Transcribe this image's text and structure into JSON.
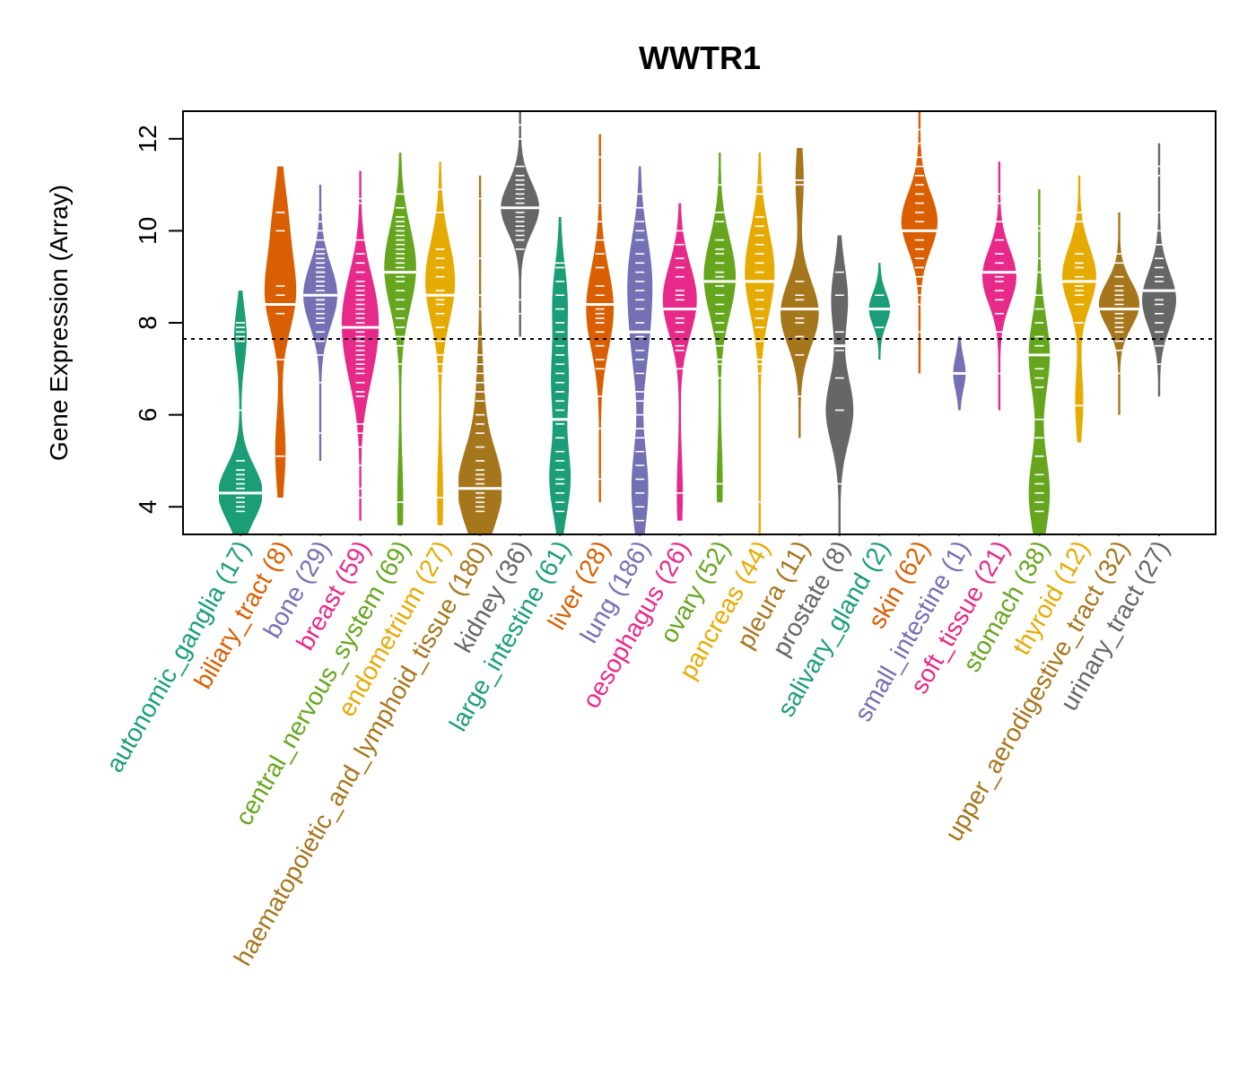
{
  "chart_data": {
    "type": "violin",
    "title": "WWTR1",
    "xlabel": "",
    "ylabel": "Gene Expression (Array)",
    "ylim": [
      3.4,
      12.6
    ],
    "yticks": [
      4,
      6,
      8,
      10,
      12
    ],
    "reference_line": {
      "value": 7.65,
      "style": "dotted",
      "color": "#000000"
    },
    "grid": false,
    "legend": "none",
    "palette": [
      "#1B9E77",
      "#D95F02",
      "#7570B3",
      "#E7298A",
      "#66A61E",
      "#E6AB02",
      "#A6761D",
      "#666666"
    ],
    "categories": [
      {
        "name": "autonomic_ganglia",
        "n": 17,
        "color": "#1B9E77",
        "min": 3.4,
        "max": 8.7,
        "median": 4.3,
        "modes": [
          [
            4.3,
            1.0
          ],
          [
            7.7,
            0.25
          ]
        ],
        "points": [
          3.9,
          4.0,
          4.1,
          4.2,
          4.3,
          4.4,
          4.5,
          4.6,
          4.7,
          4.8,
          5.0,
          6.1,
          7.6,
          7.7,
          7.8,
          7.9,
          8.0
        ]
      },
      {
        "name": "biliary_tract",
        "n": 8,
        "color": "#D95F02",
        "min": 4.2,
        "max": 11.4,
        "median": 8.4,
        "modes": [
          [
            8.6,
            0.65
          ],
          [
            10.2,
            0.3
          ],
          [
            5.2,
            0.2
          ]
        ],
        "points": [
          5.1,
          7.2,
          8.4,
          8.6,
          8.8,
          10.0,
          10.4,
          8.2
        ]
      },
      {
        "name": "bone",
        "n": 29,
        "color": "#7570B3",
        "min": 5.0,
        "max": 11.0,
        "median": 8.6,
        "modes": [
          [
            8.6,
            0.75
          ]
        ],
        "points": [
          5.6,
          6.7,
          7.3,
          7.6,
          7.8,
          8.0,
          8.1,
          8.2,
          8.3,
          8.4,
          8.5,
          8.6,
          8.7,
          8.8,
          8.9,
          9.0,
          9.1,
          9.2,
          9.3,
          9.4,
          9.5,
          9.6,
          9.8,
          10.0,
          10.2,
          10.4,
          8.5,
          8.9,
          9.1
        ]
      },
      {
        "name": "breast",
        "n": 59,
        "color": "#E7298A",
        "min": 3.7,
        "max": 11.3,
        "median": 7.9,
        "modes": [
          [
            8.4,
            0.6
          ],
          [
            7.2,
            0.45
          ]
        ],
        "points": [
          4.2,
          4.4,
          4.9,
          5.3,
          5.6,
          5.8,
          6.4,
          6.5,
          6.7,
          6.9,
          7.0,
          7.1,
          7.2,
          7.3,
          7.4,
          7.5,
          7.6,
          7.7,
          7.8,
          7.9,
          8.0,
          8.1,
          8.2,
          8.3,
          8.4,
          8.5,
          8.6,
          8.7,
          8.8,
          8.9,
          9.1,
          9.3,
          9.5,
          9.8,
          10.6,
          10.7
        ]
      },
      {
        "name": "central_nervous_system",
        "n": 69,
        "color": "#66A61E",
        "min": 3.6,
        "max": 11.7,
        "median": 9.1,
        "modes": [
          [
            9.2,
            0.7
          ],
          [
            4.1,
            0.1
          ]
        ],
        "points": [
          4.1,
          7.1,
          7.5,
          7.7,
          7.9,
          8.1,
          8.3,
          8.5,
          8.7,
          8.9,
          9.0,
          9.1,
          9.2,
          9.3,
          9.4,
          9.5,
          9.6,
          9.7,
          9.8,
          9.9,
          10.0,
          10.1,
          10.2,
          10.3,
          10.5,
          10.8
        ]
      },
      {
        "name": "endometrium",
        "n": 27,
        "color": "#E6AB02",
        "min": 3.6,
        "max": 11.5,
        "median": 8.6,
        "modes": [
          [
            8.9,
            0.65
          ],
          [
            4.2,
            0.1
          ]
        ],
        "points": [
          4.2,
          6.9,
          7.1,
          7.3,
          7.6,
          7.9,
          8.2,
          8.4,
          8.5,
          8.6,
          8.7,
          9.0,
          9.2,
          9.4,
          9.6,
          10.4,
          10.9
        ]
      },
      {
        "name": "haematopoietic_and_lymphoid_tissue",
        "n": 180,
        "color": "#A6761D",
        "min": 3.4,
        "max": 11.2,
        "median": 4.4,
        "modes": [
          [
            4.4,
            1.0
          ],
          [
            6.5,
            0.12
          ]
        ],
        "points": [
          3.9,
          4.0,
          4.1,
          4.2,
          4.3,
          4.4,
          4.5,
          4.6,
          4.7,
          4.8,
          5.0,
          5.3,
          5.6,
          5.8,
          6.0,
          6.3,
          6.5,
          6.7,
          6.9,
          7.1,
          7.3,
          7.7,
          8.3,
          8.6,
          9.4,
          10.7
        ]
      },
      {
        "name": "kidney",
        "n": 36,
        "color": "#666666",
        "min": 7.7,
        "max": 12.6,
        "median": 10.5,
        "modes": [
          [
            10.5,
            0.85
          ]
        ],
        "points": [
          8.2,
          8.5,
          9.6,
          9.8,
          9.9,
          10.0,
          10.1,
          10.2,
          10.3,
          10.4,
          10.5,
          10.6,
          10.7,
          10.8,
          10.9,
          11.0,
          11.1,
          11.2,
          11.4,
          12.0,
          12.3
        ]
      },
      {
        "name": "large_intestine",
        "n": 61,
        "color": "#1B9E77",
        "min": 3.4,
        "max": 10.3,
        "median": 5.9,
        "modes": [
          [
            4.6,
            0.45
          ],
          [
            6.7,
            0.35
          ],
          [
            8.5,
            0.3
          ]
        ],
        "points": [
          3.9,
          4.1,
          4.3,
          4.5,
          4.6,
          4.8,
          5.0,
          5.2,
          5.5,
          5.8,
          6.1,
          6.3,
          6.5,
          6.7,
          6.9,
          7.1,
          7.3,
          7.5,
          7.8,
          8.0,
          8.3,
          8.6,
          8.9,
          9.2,
          9.3
        ]
      },
      {
        "name": "liver",
        "n": 28,
        "color": "#D95F02",
        "min": 4.1,
        "max": 12.1,
        "median": 8.4,
        "modes": [
          [
            8.3,
            0.6
          ]
        ],
        "points": [
          4.6,
          5.7,
          6.4,
          7.0,
          7.2,
          7.5,
          7.8,
          8.0,
          8.1,
          8.2,
          8.3,
          8.4,
          8.6,
          8.8,
          9.2,
          9.5,
          9.8,
          10.2,
          10.6,
          11.6
        ]
      },
      {
        "name": "lung",
        "n": 186,
        "color": "#7570B3",
        "min": 3.4,
        "max": 11.4,
        "median": 7.8,
        "modes": [
          [
            9.1,
            0.45
          ],
          [
            7.6,
            0.3
          ],
          [
            4.4,
            0.35
          ]
        ],
        "points": [
          3.7,
          4.0,
          4.3,
          4.6,
          4.9,
          5.2,
          5.5,
          5.7,
          6.0,
          6.3,
          6.5,
          6.9,
          7.2,
          7.4,
          7.7,
          8.0,
          8.3,
          8.5,
          8.7,
          8.9,
          9.1,
          9.3,
          9.5,
          9.8,
          10.0,
          10.2,
          10.5,
          10.8
        ]
      },
      {
        "name": "oesophagus",
        "n": 26,
        "color": "#E7298A",
        "min": 3.7,
        "max": 10.6,
        "median": 8.3,
        "modes": [
          [
            8.5,
            0.75
          ],
          [
            4.3,
            0.1
          ]
        ],
        "points": [
          4.3,
          7.0,
          7.4,
          7.5,
          7.8,
          8.0,
          8.1,
          8.3,
          8.5,
          8.6,
          8.7,
          9.0,
          9.2,
          9.4,
          9.7,
          10.0
        ]
      },
      {
        "name": "ovary",
        "n": 52,
        "color": "#66A61E",
        "min": 4.1,
        "max": 11.7,
        "median": 8.9,
        "modes": [
          [
            9.0,
            0.7
          ],
          [
            4.5,
            0.1
          ]
        ],
        "points": [
          4.5,
          6.8,
          7.1,
          7.2,
          7.5,
          7.8,
          8.0,
          8.2,
          8.4,
          8.6,
          8.8,
          9.0,
          9.1,
          9.3,
          9.5,
          9.6,
          9.8,
          10.2,
          10.4,
          11.0
        ]
      },
      {
        "name": "pancreas",
        "n": 44,
        "color": "#E6AB02",
        "min": 3.4,
        "max": 11.7,
        "median": 8.9,
        "modes": [
          [
            9.1,
            0.65
          ]
        ],
        "points": [
          4.1,
          6.9,
          7.1,
          7.2,
          7.6,
          7.9,
          8.1,
          8.3,
          8.5,
          8.7,
          8.9,
          9.1,
          9.3,
          9.5,
          9.7,
          9.9,
          10.1,
          10.3,
          10.8,
          11.0
        ]
      },
      {
        "name": "pleura",
        "n": 11,
        "color": "#A6761D",
        "min": 5.5,
        "max": 11.8,
        "median": 8.3,
        "modes": [
          [
            8.2,
            0.85
          ],
          [
            11.1,
            0.15
          ]
        ],
        "points": [
          6.4,
          7.3,
          7.7,
          8.0,
          8.1,
          8.3,
          8.5,
          8.6,
          8.9,
          11.1,
          11.0
        ]
      },
      {
        "name": "prostate",
        "n": 8,
        "color": "#666666",
        "min": 3.4,
        "max": 9.9,
        "median": 7.5,
        "modes": [
          [
            6.1,
            0.6
          ],
          [
            8.5,
            0.35
          ]
        ],
        "points": [
          4.5,
          6.1,
          6.8,
          7.5,
          7.8,
          8.6,
          9.1,
          7.4
        ]
      },
      {
        "name": "salivary_gland",
        "n": 2,
        "color": "#1B9E77",
        "min": 7.2,
        "max": 9.3,
        "median": 8.3,
        "modes": [
          [
            8.3,
            0.45
          ]
        ],
        "points": [
          7.9,
          8.6
        ]
      },
      {
        "name": "skin",
        "n": 62,
        "color": "#D95F02",
        "min": 6.9,
        "max": 12.6,
        "median": 10.0,
        "modes": [
          [
            10.2,
            0.8
          ]
        ],
        "points": [
          7.8,
          8.4,
          8.6,
          8.8,
          9.0,
          9.2,
          9.4,
          9.6,
          9.8,
          10.0,
          10.2,
          10.4,
          10.6,
          10.8,
          11.0,
          11.2,
          11.4,
          11.6,
          11.9,
          12.2
        ]
      },
      {
        "name": "small_intestine",
        "n": 1,
        "color": "#7570B3",
        "min": 6.1,
        "max": 7.7,
        "median": 6.9,
        "modes": [
          [
            6.9,
            0.25
          ]
        ],
        "points": [
          6.9
        ]
      },
      {
        "name": "soft_tissue",
        "n": 21,
        "color": "#E7298A",
        "min": 6.1,
        "max": 11.5,
        "median": 9.1,
        "modes": [
          [
            9.0,
            0.75
          ]
        ],
        "points": [
          6.9,
          7.8,
          8.2,
          8.5,
          8.7,
          8.9,
          9.0,
          9.1,
          9.3,
          9.5,
          9.8,
          10.2,
          10.6,
          10.8
        ]
      },
      {
        "name": "stomach",
        "n": 38,
        "color": "#66A61E",
        "min": 3.4,
        "max": 10.9,
        "median": 7.3,
        "modes": [
          [
            7.3,
            0.45
          ],
          [
            4.3,
            0.45
          ]
        ],
        "points": [
          3.9,
          4.1,
          4.3,
          4.5,
          4.7,
          5.1,
          5.5,
          5.9,
          6.6,
          6.8,
          7.0,
          7.3,
          7.5,
          7.7,
          8.0,
          8.3,
          8.6,
          9.1,
          9.4,
          10.0,
          10.1
        ]
      },
      {
        "name": "thyroid",
        "n": 12,
        "color": "#E6AB02",
        "min": 5.4,
        "max": 11.2,
        "median": 8.9,
        "modes": [
          [
            9.0,
            0.75
          ],
          [
            6.3,
            0.15
          ]
        ],
        "points": [
          6.2,
          8.0,
          8.4,
          8.6,
          8.8,
          9.0,
          9.2,
          9.5,
          10.2,
          10.4,
          8.7,
          9.3
        ]
      },
      {
        "name": "upper_aerodigestive_tract",
        "n": 32,
        "color": "#A6761D",
        "min": 6.0,
        "max": 10.4,
        "median": 8.3,
        "modes": [
          [
            8.4,
            0.9
          ]
        ],
        "points": [
          6.9,
          7.4,
          7.6,
          7.8,
          7.9,
          8.0,
          8.1,
          8.2,
          8.3,
          8.4,
          8.5,
          8.6,
          8.7,
          8.8,
          9.0,
          9.3,
          9.5
        ]
      },
      {
        "name": "urinary_tract",
        "n": 27,
        "color": "#666666",
        "min": 6.4,
        "max": 11.9,
        "median": 8.7,
        "modes": [
          [
            8.5,
            0.75
          ]
        ],
        "points": [
          7.1,
          7.5,
          7.8,
          8.0,
          8.2,
          8.4,
          8.5,
          8.7,
          8.9,
          9.0,
          9.2,
          9.4,
          9.7,
          10.0,
          10.4,
          11.2,
          11.4
        ]
      }
    ]
  }
}
